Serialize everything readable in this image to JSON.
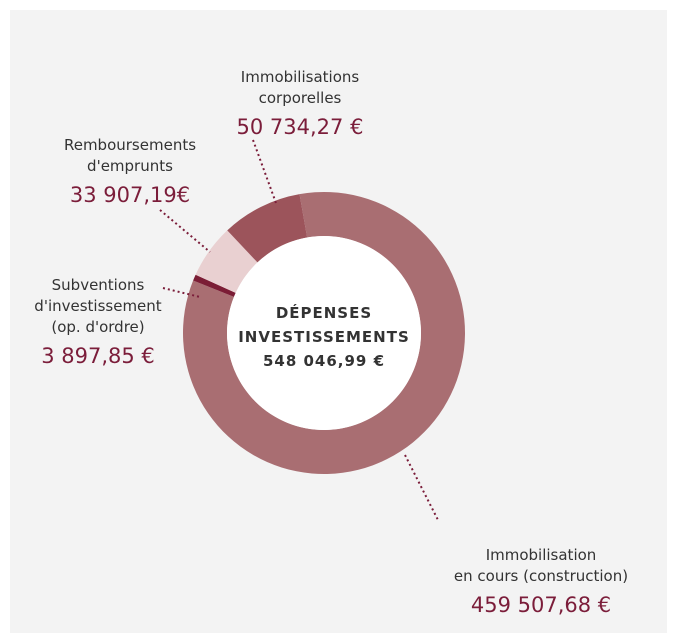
{
  "chart_data": {
    "type": "donut",
    "categories": [
      [
        "Immobilisation",
        "en cours (construction)"
      ],
      [
        "Subventions",
        "d'investissement",
        "(op. d'ordre)"
      ],
      [
        "Remboursements",
        "d'emprunts"
      ],
      [
        "Immobilisations",
        "corporelles"
      ]
    ],
    "values": [
      459507.68,
      3897.85,
      33907.19,
      50734.27
    ],
    "value_labels": [
      "459 507,68 €",
      "3 897,85 €",
      "33 907,19€",
      "50 734,27 €"
    ],
    "colors": [
      "#a96e72",
      "#7b1d35",
      "#e9d0d1",
      "#9c545b"
    ],
    "center_lines": [
      "DÉPENSES",
      "INVESTISSEMENTS"
    ],
    "total_label": "548 046,99 €"
  }
}
